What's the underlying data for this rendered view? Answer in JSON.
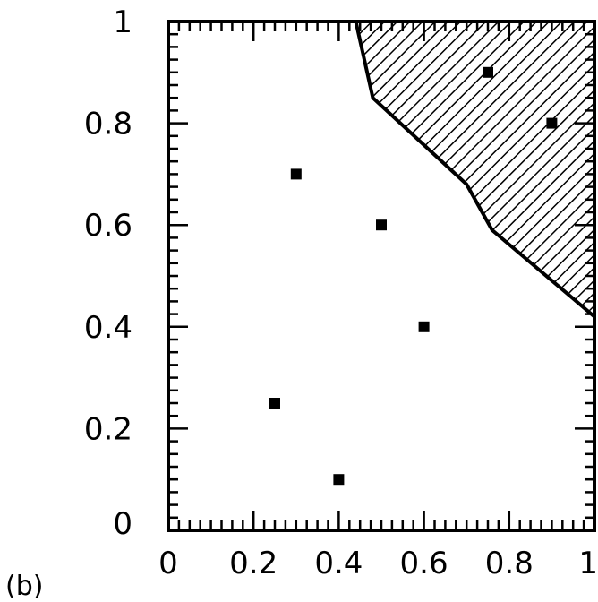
{
  "chart_data": {
    "type": "scatter",
    "panel_label": "(b)",
    "xlim": [
      0,
      1
    ],
    "ylim": [
      0,
      1
    ],
    "x_ticks": [
      0,
      0.2,
      0.4,
      0.6,
      0.8,
      1
    ],
    "y_ticks": [
      0,
      0.2,
      0.4,
      0.6,
      0.8,
      1
    ],
    "x_tick_labels": [
      "0",
      "0.2",
      "0.4",
      "0.6",
      "0.8",
      "1"
    ],
    "y_tick_labels": [
      "0",
      "0.2",
      "0.4",
      "0.6",
      "0.8",
      "1"
    ],
    "points": [
      {
        "x": 0.25,
        "y": 0.25
      },
      {
        "x": 0.3,
        "y": 0.7
      },
      {
        "x": 0.4,
        "y": 0.1
      },
      {
        "x": 0.5,
        "y": 0.6
      },
      {
        "x": 0.6,
        "y": 0.4
      },
      {
        "x": 0.75,
        "y": 0.9
      },
      {
        "x": 0.9,
        "y": 0.8
      }
    ],
    "hatched_region_boundary": [
      {
        "x": 0.44,
        "y": 1.0
      },
      {
        "x": 0.48,
        "y": 0.85
      },
      {
        "x": 0.7,
        "y": 0.68
      },
      {
        "x": 0.76,
        "y": 0.59
      },
      {
        "x": 1.0,
        "y": 0.42
      }
    ],
    "grid": false
  }
}
